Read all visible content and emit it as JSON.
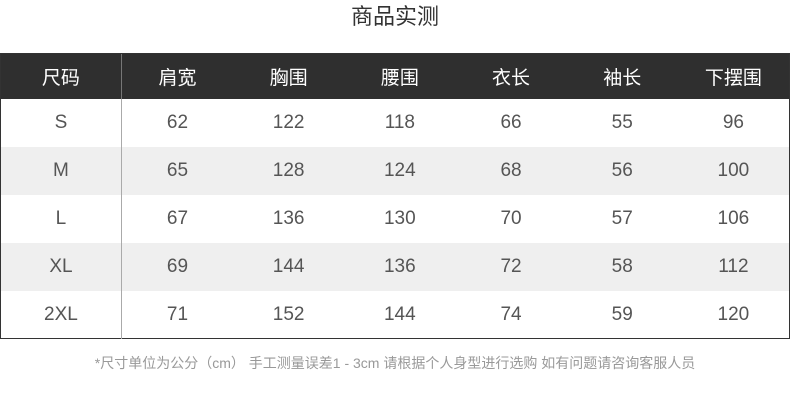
{
  "title": "商品实测",
  "table": {
    "headers": [
      "尺码",
      "肩宽",
      "胸围",
      "腰围",
      "衣长",
      "袖长",
      "下摆围"
    ],
    "rows": [
      [
        "S",
        "62",
        "122",
        "118",
        "66",
        "55",
        "96"
      ],
      [
        "M",
        "65",
        "128",
        "124",
        "68",
        "56",
        "100"
      ],
      [
        "L",
        "67",
        "136",
        "130",
        "70",
        "57",
        "106"
      ],
      [
        "XL",
        "69",
        "144",
        "136",
        "72",
        "58",
        "112"
      ],
      [
        "2XL",
        "71",
        "152",
        "144",
        "74",
        "59",
        "120"
      ]
    ]
  },
  "note": "*尺寸单位为公分（cm） 手工测量误差1 - 3cm 请根据个人身型进行选购 如有问题请咨询客服人员",
  "colors": {
    "header_bg": "#2f2f2f",
    "alt_row_bg": "#efefef",
    "text": "#555555"
  }
}
